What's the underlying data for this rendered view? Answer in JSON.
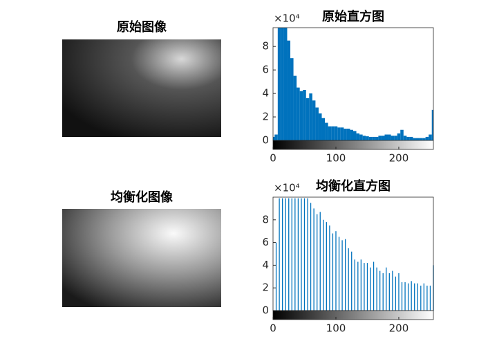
{
  "images": [
    {
      "title": "原始图像"
    },
    {
      "title": "均衡化图像"
    }
  ],
  "chart_data": [
    {
      "type": "bar",
      "title": "原始直方图",
      "y_exponent": "×10⁴",
      "color": "#0072bd",
      "x": [
        0,
        5,
        10,
        15,
        20,
        25,
        30,
        35,
        40,
        45,
        50,
        55,
        60,
        65,
        70,
        75,
        80,
        85,
        90,
        95,
        100,
        105,
        110,
        115,
        120,
        125,
        130,
        135,
        140,
        145,
        150,
        155,
        160,
        165,
        170,
        175,
        180,
        185,
        190,
        195,
        200,
        205,
        210,
        215,
        220,
        225,
        230,
        235,
        240,
        245,
        250,
        255
      ],
      "values": [
        0.3,
        0.5,
        9.6,
        9.6,
        9.6,
        8.5,
        7,
        5.5,
        4.5,
        4.2,
        4.3,
        3.6,
        4.0,
        3.4,
        2.8,
        2.3,
        1.9,
        1.5,
        1.2,
        1.2,
        1.2,
        1.1,
        1.1,
        1.0,
        1.0,
        0.9,
        0.8,
        0.6,
        0.5,
        0.4,
        0.35,
        0.3,
        0.3,
        0.3,
        0.4,
        0.4,
        0.5,
        0.5,
        0.4,
        0.4,
        0.6,
        0.9,
        0.4,
        0.3,
        0.3,
        0.2,
        0.2,
        0.2,
        0.2,
        0.3,
        0.5,
        2.6
      ],
      "xlim": [
        0,
        255
      ],
      "xticks": [
        0,
        100,
        200
      ],
      "ylim": [
        0,
        9.6
      ],
      "yticks": [
        0,
        2,
        4,
        6,
        8
      ]
    },
    {
      "type": "stem",
      "title": "均衡化直方图",
      "y_exponent": "×10⁴",
      "color": "#0072bd",
      "x": [
        5,
        10,
        15,
        20,
        25,
        30,
        35,
        40,
        45,
        50,
        55,
        60,
        65,
        70,
        75,
        80,
        85,
        90,
        95,
        100,
        105,
        110,
        115,
        120,
        125,
        130,
        135,
        140,
        145,
        150,
        155,
        160,
        165,
        170,
        175,
        180,
        185,
        190,
        195,
        200,
        205,
        210,
        215,
        220,
        225,
        230,
        235,
        240,
        245,
        250,
        255
      ],
      "values": [
        6,
        9.9,
        9.9,
        9.9,
        9.9,
        9.9,
        9.9,
        9.9,
        9.9,
        9.9,
        9.9,
        9.5,
        9,
        8.5,
        8.7,
        8,
        7.8,
        7.5,
        6.8,
        7,
        6.5,
        6.2,
        6.3,
        5.5,
        5.2,
        4.5,
        4.3,
        4.5,
        4.2,
        4.2,
        3.8,
        4.3,
        3.8,
        3.5,
        3.3,
        3.8,
        3.3,
        3.5,
        3,
        3.3,
        2.5,
        2.5,
        2.4,
        2.6,
        2.4,
        2.4,
        2.2,
        2.4,
        2.2,
        2.2,
        4
      ],
      "xlim": [
        0,
        255
      ],
      "xticks": [
        0,
        100,
        200
      ],
      "ylim": [
        0,
        10
      ],
      "yticks": [
        0,
        2,
        4,
        6,
        8
      ]
    }
  ]
}
